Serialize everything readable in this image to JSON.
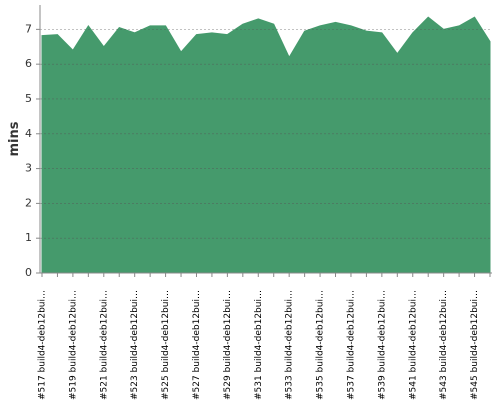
{
  "chart_data": {
    "type": "area",
    "y_label": "mins",
    "categories": [
      "#517 build4-deb12bui…",
      null,
      "#519 build4-deb12bui…",
      null,
      "#521 build4-deb12bui…",
      null,
      "#523 build4-deb12bui…",
      null,
      "#525 build4-deb12bui…",
      null,
      "#527 build4-deb12bui…",
      null,
      "#529 build4-deb12bui…",
      null,
      "#531 build4-deb12bui…",
      null,
      "#533 build4-deb12bui…",
      null,
      "#535 build4-deb12bui…",
      null,
      "#537 build4-deb12bui…",
      null,
      "#539 build4-deb12bui…",
      null,
      "#541 build4-deb12bui…",
      null,
      "#543 build4-deb12bui…",
      null,
      "#545 build4-deb12bui…",
      null
    ],
    "values": [
      6.82,
      6.85,
      6.4,
      7.1,
      6.5,
      7.05,
      6.9,
      7.1,
      7.1,
      6.35,
      6.85,
      6.9,
      6.85,
      7.15,
      7.3,
      7.15,
      6.2,
      6.95,
      7.1,
      7.2,
      7.1,
      6.95,
      6.9,
      6.3,
      6.9,
      7.35,
      7.0,
      7.1,
      7.35,
      6.65
    ],
    "color": "#459a6c",
    "ylim": [
      0,
      7.7
    ],
    "yticks": [
      0,
      1,
      2,
      3,
      4,
      5,
      6,
      7
    ],
    "grid": true
  }
}
